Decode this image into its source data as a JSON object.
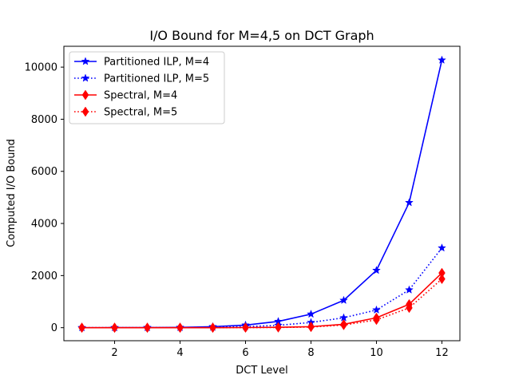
{
  "chart_data": {
    "type": "line",
    "title": "I/O Bound for M=4,5 on DCT Graph",
    "xlabel": "DCT Level",
    "ylabel": "Computed I/O Bound",
    "xlim": [
      0.45,
      12.55
    ],
    "ylim": [
      -500,
      10800
    ],
    "xticks": [
      2,
      4,
      6,
      8,
      10,
      12
    ],
    "yticks": [
      0,
      2000,
      4000,
      6000,
      8000,
      10000
    ],
    "grid": false,
    "legend_position": "top-left",
    "x": [
      1,
      2,
      3,
      4,
      5,
      6,
      7,
      8,
      9,
      10,
      11,
      12
    ],
    "series": [
      {
        "name": "Partitioned ILP, M=4",
        "color": "#0000ff",
        "linestyle": "solid",
        "marker": "star",
        "values": [
          0,
          2,
          5,
          12,
          40,
          100,
          240,
          520,
          1050,
          2200,
          4800,
          10270
        ]
      },
      {
        "name": "Partitioned ILP, M=5",
        "color": "#0000ff",
        "linestyle": "dotted",
        "marker": "star",
        "values": [
          0,
          1,
          2,
          5,
          15,
          40,
          90,
          200,
          380,
          680,
          1450,
          3060
        ]
      },
      {
        "name": "Spectral, M=4",
        "color": "#ff0000",
        "linestyle": "solid",
        "marker": "diamond",
        "values": [
          0,
          0,
          0,
          0,
          0,
          5,
          15,
          40,
          130,
          380,
          900,
          2100
        ]
      },
      {
        "name": "Spectral, M=5",
        "color": "#ff0000",
        "linestyle": "dotted",
        "marker": "diamond",
        "values": [
          0,
          0,
          0,
          0,
          0,
          2,
          8,
          25,
          100,
          300,
          760,
          1870
        ]
      }
    ]
  }
}
